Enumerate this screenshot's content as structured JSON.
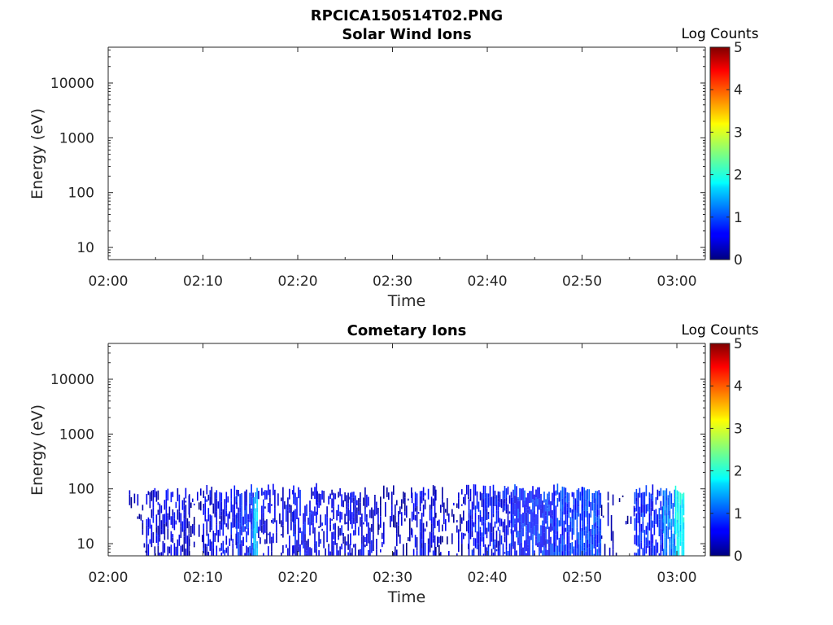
{
  "figure_title": "RPCICA150514T02.PNG",
  "chart_data": [
    {
      "type": "heatmap",
      "title": "Solar Wind Ions",
      "xlabel": "Time",
      "ylabel": "Energy (eV)",
      "x_ticks": [
        "02:00",
        "02:10",
        "02:20",
        "02:30",
        "02:40",
        "02:50",
        "03:00"
      ],
      "x_range_minutes": [
        0,
        63
      ],
      "y_scale": "log",
      "y_ticks": [
        "10",
        "100",
        "1000",
        "10000"
      ],
      "y_range": [
        6,
        45000
      ],
      "colorbar": {
        "label": "Log Counts",
        "ticks": [
          "0",
          "1",
          "2",
          "3",
          "4",
          "5"
        ],
        "range": [
          0,
          5
        ],
        "colormap": "jet"
      },
      "grid": false,
      "data": "none"
    },
    {
      "type": "heatmap",
      "title": "Cometary Ions",
      "xlabel": "Time",
      "ylabel": "Energy (eV)",
      "x_ticks": [
        "02:00",
        "02:10",
        "02:20",
        "02:30",
        "02:40",
        "02:50",
        "03:00"
      ],
      "x_range_minutes": [
        0,
        63
      ],
      "y_scale": "log",
      "y_ticks": [
        "10",
        "100",
        "1000",
        "10000"
      ],
      "y_range": [
        6,
        45000
      ],
      "colorbar": {
        "label": "Log Counts",
        "ticks": [
          "0",
          "1",
          "2",
          "3",
          "4",
          "5"
        ],
        "range": [
          0,
          5
        ],
        "colormap": "jet"
      },
      "grid": false,
      "data_extent": {
        "x_minutes": [
          2.2,
          60.7
        ],
        "energy_eV": [
          6,
          80
        ]
      },
      "columns": [
        {
          "t0": 2.2,
          "t1": 4.0,
          "level": 0.25,
          "density": 0.25
        },
        {
          "t0": 4.0,
          "t1": 8.5,
          "level": 0.45,
          "density": 0.55
        },
        {
          "t0": 8.5,
          "t1": 10.0,
          "level": 0.3,
          "density": 0.3
        },
        {
          "t0": 10.0,
          "t1": 13.5,
          "level": 0.5,
          "density": 0.6
        },
        {
          "t0": 13.5,
          "t1": 15.3,
          "level": 0.7,
          "density": 0.65
        },
        {
          "t0": 15.3,
          "t1": 15.8,
          "level": 1.6,
          "density": 0.9
        },
        {
          "t0": 15.8,
          "t1": 19.5,
          "level": 0.45,
          "density": 0.45
        },
        {
          "t0": 19.5,
          "t1": 22.0,
          "level": 0.55,
          "density": 0.6
        },
        {
          "t0": 22.0,
          "t1": 25.5,
          "level": 0.45,
          "density": 0.5
        },
        {
          "t0": 25.5,
          "t1": 28.5,
          "level": 0.45,
          "density": 0.55
        },
        {
          "t0": 28.5,
          "t1": 32.0,
          "level": 0.3,
          "density": 0.3
        },
        {
          "t0": 32.0,
          "t1": 34.5,
          "level": 0.5,
          "density": 0.55
        },
        {
          "t0": 34.5,
          "t1": 38.0,
          "level": 0.3,
          "density": 0.3
        },
        {
          "t0": 38.0,
          "t1": 42.5,
          "level": 0.6,
          "density": 0.7
        },
        {
          "t0": 42.5,
          "t1": 47.0,
          "level": 0.75,
          "density": 0.85
        },
        {
          "t0": 47.0,
          "t1": 50.0,
          "level": 0.85,
          "density": 0.85
        },
        {
          "t0": 50.0,
          "t1": 52.0,
          "level": 0.9,
          "density": 0.9
        },
        {
          "t0": 52.0,
          "t1": 55.5,
          "level": 0.2,
          "density": 0.15
        },
        {
          "t0": 55.5,
          "t1": 58.5,
          "level": 0.75,
          "density": 0.75
        },
        {
          "t0": 58.5,
          "t1": 59.8,
          "level": 1.2,
          "density": 0.9
        },
        {
          "t0": 59.8,
          "t1": 60.7,
          "level": 1.8,
          "density": 0.95
        }
      ]
    }
  ]
}
